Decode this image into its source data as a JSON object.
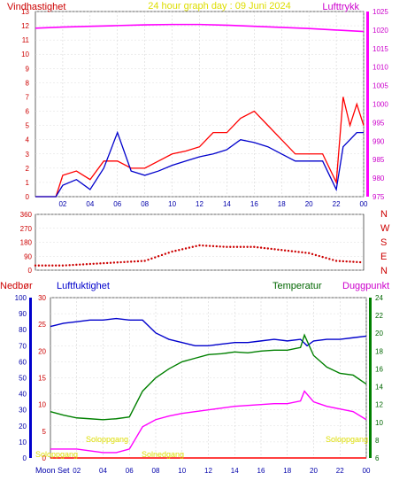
{
  "top": {
    "title": "24 hour graph day : 09 Juni 2024",
    "left_label": "Vindhastighet",
    "right_label": "Lufttrykk",
    "y_left_ticks": [
      "0",
      "1",
      "2",
      "3",
      "4",
      "5",
      "6",
      "7",
      "8",
      "9",
      "10",
      "11",
      "12",
      "13"
    ],
    "y_right_ticks": [
      "975",
      "980",
      "985",
      "990",
      "995",
      "1000",
      "1005",
      "1010",
      "1015",
      "1020",
      "1025"
    ],
    "x_ticks": [
      "02",
      "04",
      "06",
      "08",
      "10",
      "12",
      "14",
      "16",
      "18",
      "20",
      "22",
      "00"
    ]
  },
  "dir": {
    "y_ticks": [
      "0",
      "90",
      "180",
      "270",
      "360"
    ],
    "compass": [
      "N",
      "W",
      "S",
      "E",
      "N"
    ]
  },
  "bottom": {
    "labels": {
      "rain": "Nedbør",
      "humidity": "Luftfuktighet",
      "temperature": "Temperatur",
      "dewpoint": "Duggpunkt"
    },
    "y_hum_ticks": [
      "0",
      "10",
      "20",
      "30",
      "40",
      "50",
      "60",
      "70",
      "80",
      "90",
      "100"
    ],
    "y_rain_ticks": [
      "0",
      "5",
      "10",
      "15",
      "20",
      "25",
      "30"
    ],
    "y_temp_ticks": [
      "6",
      "8",
      "10",
      "12",
      "14",
      "16",
      "18",
      "20",
      "22",
      "24"
    ],
    "x_ticks": [
      "02",
      "04",
      "06",
      "08",
      "10",
      "12",
      "14",
      "16",
      "18",
      "20",
      "22",
      "00"
    ],
    "annotations": {
      "moonset": "Moon Set",
      "sunrise1": "Soloppgang",
      "sunrise2": "Soloppgang",
      "bottom_left": "Soloppgang",
      "bottom_mid": "Solnedgang"
    }
  },
  "chart_data": [
    {
      "type": "line",
      "series": [
        {
          "name": "Vindhastighet",
          "color": "#ff0000",
          "x": [
            0,
            1.5,
            2,
            3,
            4,
            5,
            6,
            7,
            8,
            9,
            10,
            11,
            12,
            13,
            14,
            15,
            16,
            17,
            18,
            19,
            20,
            21,
            22,
            22.5,
            23,
            23.5,
            24
          ],
          "values": [
            0,
            0,
            1.5,
            1.8,
            1.2,
            2.5,
            2.5,
            2.0,
            2.0,
            2.5,
            3.0,
            3.2,
            3.5,
            4.5,
            4.5,
            5.5,
            6.0,
            5.0,
            4.0,
            3.0,
            3.0,
            3.0,
            1.0,
            7.0,
            5.0,
            6.5,
            5.0
          ]
        },
        {
          "name": "Vindkast (blå)",
          "color": "#0000cc",
          "x": [
            0,
            1.5,
            2,
            3,
            4,
            5,
            6,
            7,
            8,
            9,
            10,
            11,
            12,
            13,
            14,
            15,
            16,
            17,
            18,
            19,
            20,
            21,
            22,
            22.5,
            23,
            23.5,
            24
          ],
          "values": [
            0,
            0,
            0.8,
            1.2,
            0.5,
            2.0,
            4.5,
            1.8,
            1.5,
            1.8,
            2.2,
            2.5,
            2.8,
            3.0,
            3.3,
            4.0,
            3.8,
            3.5,
            3.0,
            2.5,
            2.5,
            2.5,
            0.5,
            3.5,
            4.0,
            4.5,
            4.5
          ]
        },
        {
          "name": "Lufttrykk",
          "color": "#ff00ff",
          "axis": "right",
          "x": [
            0,
            2,
            4,
            6,
            8,
            10,
            12,
            14,
            16,
            18,
            20,
            22,
            24
          ],
          "values": [
            1020.5,
            1020.8,
            1021.0,
            1021.2,
            1021.4,
            1021.5,
            1021.5,
            1021.3,
            1021.0,
            1020.7,
            1020.4,
            1020.0,
            1019.6
          ]
        }
      ],
      "ylim_left": [
        0,
        13
      ],
      "ylim_right": [
        975,
        1025
      ]
    },
    {
      "type": "scatter",
      "series": [
        {
          "name": "Vindretning",
          "color": "#cc0000",
          "x": [
            0,
            2,
            4,
            6,
            8,
            10,
            12,
            14,
            16,
            18,
            20,
            22,
            24
          ],
          "values": [
            30,
            30,
            40,
            50,
            60,
            120,
            160,
            150,
            150,
            130,
            110,
            60,
            50
          ]
        }
      ],
      "ylim": [
        0,
        360
      ]
    },
    {
      "type": "line",
      "series": [
        {
          "name": "Luftfuktighet",
          "color": "#0000cc",
          "x": [
            0,
            1,
            2,
            3,
            4,
            5,
            6,
            7,
            8,
            9,
            10,
            11,
            12,
            13,
            14,
            15,
            16,
            17,
            18,
            19,
            19.5,
            20,
            21,
            22,
            23,
            24
          ],
          "values": [
            82,
            84,
            85,
            86,
            86,
            87,
            86,
            86,
            78,
            74,
            72,
            70,
            70,
            71,
            72,
            72,
            73,
            74,
            73,
            74,
            70,
            73,
            74,
            74,
            75,
            76
          ]
        },
        {
          "name": "Temperatur",
          "color": "#008000",
          "x": [
            0,
            1,
            2,
            3,
            4,
            5,
            6,
            7,
            8,
            9,
            10,
            11,
            12,
            13,
            14,
            15,
            16,
            17,
            18,
            19,
            19.3,
            20,
            21,
            22,
            23,
            24
          ],
          "values": [
            11.2,
            10.8,
            10.5,
            10.4,
            10.3,
            10.4,
            10.6,
            13.5,
            15.0,
            16.0,
            16.8,
            17.2,
            17.6,
            17.7,
            17.9,
            17.8,
            18.0,
            18.1,
            18.1,
            18.4,
            19.8,
            17.5,
            16.2,
            15.5,
            15.3,
            14.3
          ]
        },
        {
          "name": "Duggpunkt",
          "color": "#ff00ff",
          "x": [
            0,
            1,
            2,
            3,
            4,
            5,
            6,
            7,
            8,
            9,
            10,
            11,
            12,
            13,
            14,
            15,
            16,
            17,
            18,
            19,
            19.3,
            20,
            21,
            22,
            23,
            24
          ],
          "values": [
            7.0,
            7.0,
            7.0,
            6.8,
            6.6,
            6.6,
            7.0,
            9.5,
            10.3,
            10.7,
            11.0,
            11.2,
            11.4,
            11.6,
            11.8,
            11.9,
            12.0,
            12.1,
            12.1,
            12.4,
            13.5,
            12.3,
            11.8,
            11.5,
            11.2,
            10.3
          ]
        },
        {
          "name": "Nedbør",
          "color": "#ff0000",
          "x": [
            0,
            24
          ],
          "values": [
            0,
            0
          ]
        }
      ],
      "ylim_hum": [
        0,
        100
      ],
      "ylim_rain": [
        0,
        30
      ],
      "ylim_temp": [
        6,
        24
      ]
    }
  ]
}
